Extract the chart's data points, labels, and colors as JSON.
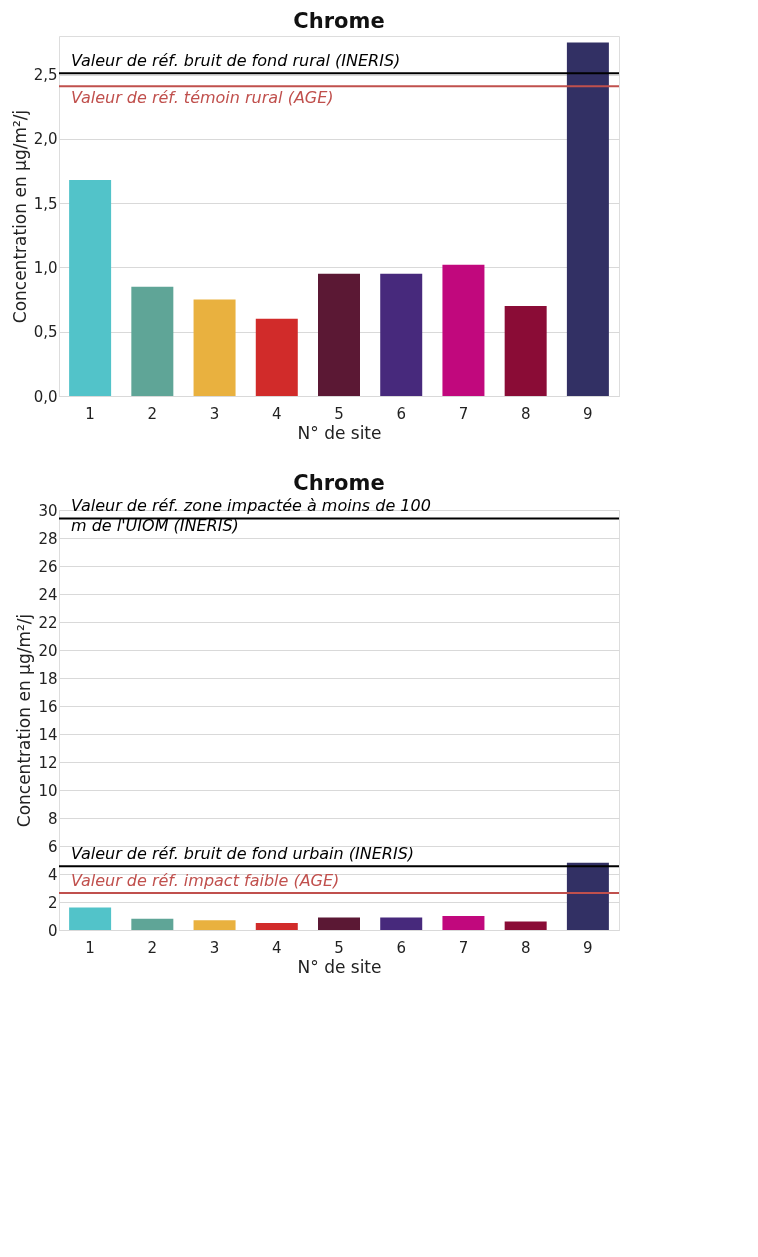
{
  "chart_data": [
    {
      "type": "bar",
      "title": "Chrome",
      "xlabel": "N° de site",
      "ylabel": "Concentration en µg/m²/j",
      "categories": [
        "1",
        "2",
        "3",
        "4",
        "5",
        "6",
        "7",
        "8",
        "9"
      ],
      "values": [
        1.68,
        0.85,
        0.75,
        0.6,
        0.95,
        0.95,
        1.02,
        0.7,
        2.75
      ],
      "colors": [
        "#52c3c9",
        "#5fa597",
        "#e9b13f",
        "#d12b2a",
        "#5b1834",
        "#47297c",
        "#c1087d",
        "#8a0c36",
        "#323064"
      ],
      "ylim": [
        0,
        2.8
      ],
      "yticks": [
        {
          "value": 0,
          "label": "0,0"
        },
        {
          "value": 0.5,
          "label": "0,5"
        },
        {
          "value": 1,
          "label": "1,0"
        },
        {
          "value": 1.5,
          "label": "1,5"
        },
        {
          "value": 2,
          "label": "2,0"
        },
        {
          "value": 2.5,
          "label": "2,5"
        }
      ],
      "grid": "y",
      "ref_lines": [
        {
          "axis": "y",
          "value": 2.51,
          "label": "Valeur de réf. bruit de fond rural (INERIS)",
          "color": "#000000"
        },
        {
          "axis": "y",
          "value": 2.41,
          "label": "Valeur de réf. témoin rural (AGE)",
          "color": "#c0504d"
        }
      ]
    },
    {
      "type": "bar",
      "title": "Chrome",
      "xlabel": "N° de site",
      "ylabel": "Concentration en µg/m²/j",
      "categories": [
        "1",
        "2",
        "3",
        "4",
        "5",
        "6",
        "7",
        "8",
        "9"
      ],
      "values": [
        1.6,
        0.8,
        0.7,
        0.5,
        0.9,
        0.9,
        1.0,
        0.6,
        4.8
      ],
      "colors": [
        "#52c3c9",
        "#5fa597",
        "#e9b13f",
        "#d12b2a",
        "#5b1834",
        "#47297c",
        "#c1087d",
        "#8a0c36",
        "#323064"
      ],
      "ylim": [
        0,
        30
      ],
      "yticks": [
        0,
        2,
        4,
        6,
        8,
        10,
        12,
        14,
        16,
        18,
        20,
        22,
        24,
        26,
        28,
        30
      ],
      "grid": "y",
      "ref_lines": [
        {
          "axis": "y",
          "value": 29.4,
          "label": "Valeur de réf. zone impactée à moins de 100 m de l'UIOM (INERIS)",
          "color": "#000000"
        },
        {
          "axis": "y",
          "value": 4.56,
          "label": "Valeur de réf. bruit de fond urbain (INERIS)",
          "color": "#000000"
        },
        {
          "axis": "y",
          "value": 2.65,
          "label": "Valeur de réf. impact faible (AGE)",
          "color": "#c0504d"
        }
      ]
    }
  ]
}
